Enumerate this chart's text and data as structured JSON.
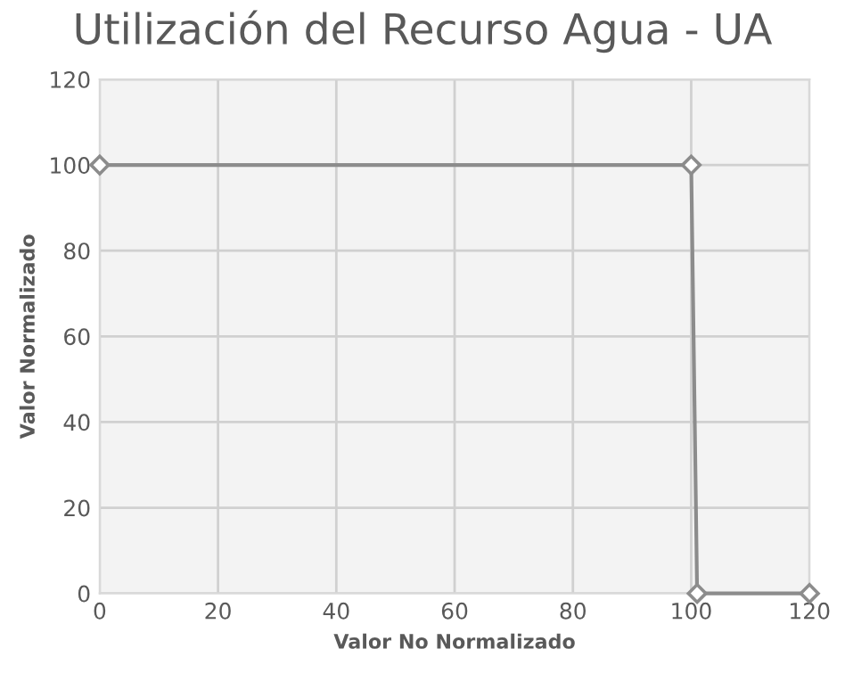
{
  "chart_data": {
    "type": "line",
    "title": "Utilización del Recurso Agua - UA",
    "xlabel": "Valor No Normalizado",
    "ylabel": "Valor Normalizado",
    "series": [
      {
        "color": "#8c8c8c",
        "x": [
          0,
          100,
          101,
          120
        ],
        "values": [
          100,
          100,
          0,
          0
        ]
      }
    ],
    "xlim": [
      0,
      120
    ],
    "xticks": [
      0,
      20,
      40,
      60,
      80,
      100,
      120
    ],
    "ylim": [
      0,
      120
    ],
    "yticks": [
      0,
      20,
      40,
      60,
      80,
      100,
      120
    ],
    "grid": true,
    "marker": "diamond",
    "line_style": "solid",
    "legend": false
  }
}
